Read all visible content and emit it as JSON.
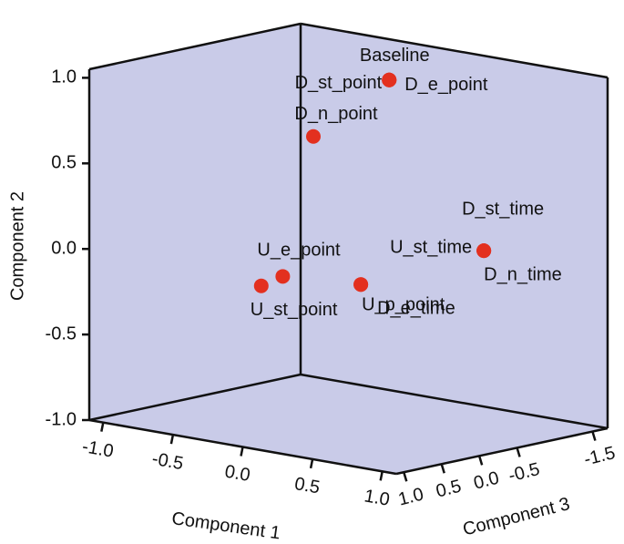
{
  "chart_data": {
    "type": "scatter3d",
    "x_label": "Component 1",
    "y_label": "Component 2",
    "z_label": "Component 3",
    "labels": [
      "Baseline",
      "D_st_point",
      "D_e_point",
      "D_n_point",
      "D_st_time",
      "U_st_time",
      "D_n_time",
      "D_e_time",
      "U_p_point",
      "U_e_point",
      "U_st_point"
    ],
    "x": [
      0.0,
      0.0,
      0.0,
      -0.3,
      0.9,
      0.9,
      0.9,
      0.5,
      0.5,
      0.2,
      0.1
    ],
    "y": [
      0.96,
      0.96,
      0.96,
      0.63,
      0.13,
      0.13,
      0.13,
      -0.04,
      -0.04,
      0.01,
      -0.05
    ],
    "z": [
      -0.84,
      -0.84,
      -0.84,
      -0.39,
      -0.43,
      -0.43,
      -0.43,
      0.46,
      0.46,
      0.94,
      1.04
    ],
    "color": "#e3301f",
    "wall_color": "#c9cbe8",
    "xlim": [
      -1.1,
      1.1
    ],
    "ylim": [
      -1.0,
      1.05
    ],
    "zlim": [
      -1.7,
      1.1
    ],
    "xticks": [
      {
        "value": -1,
        "label": "-1.0"
      },
      -0.5,
      {
        "value": 0,
        "label": "0.0"
      },
      0.5,
      {
        "value": 1,
        "label": "1.0"
      }
    ],
    "yticks": [
      {
        "value": 1,
        "label": "1.0"
      },
      0.5,
      {
        "value": 0,
        "label": "0.0"
      },
      -0.5,
      {
        "value": -1,
        "label": "-1.0"
      }
    ],
    "zticks": [
      {
        "value": 1,
        "label": "1.0"
      },
      0.5,
      {
        "value": 0,
        "label": "0.0"
      },
      -0.5,
      -1.5
    ]
  }
}
